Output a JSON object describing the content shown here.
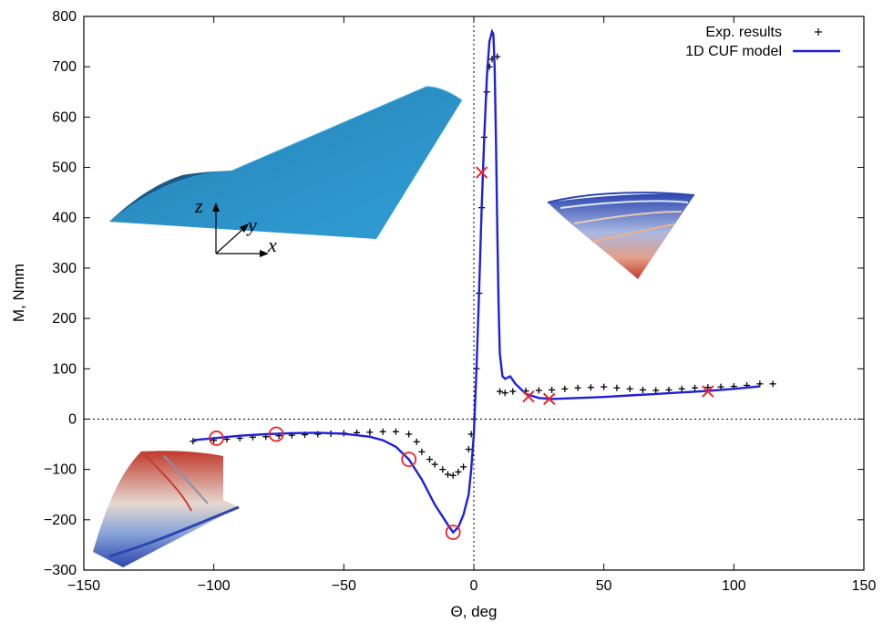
{
  "chart_data": {
    "type": "scatter",
    "title": "",
    "xlabel": "Θ, deg",
    "ylabel": "M, Nmm",
    "xlim": [
      -150,
      150
    ],
    "ylim": [
      -300,
      800
    ],
    "xticks": [
      -150,
      -100,
      -50,
      0,
      50,
      100,
      150
    ],
    "yticks": [
      -300,
      -200,
      -100,
      0,
      100,
      200,
      300,
      400,
      500,
      600,
      700,
      800
    ],
    "grid": false,
    "zero_lines": "dotted at x=0 and y=0",
    "legend_position": "top-right",
    "legend": {
      "exp_label": "Exp. results",
      "model_label": "1D CUF model"
    },
    "colors": {
      "model": "#1f1fdc",
      "experiment": "#000000",
      "markers": "#e8262a"
    },
    "series": [
      {
        "name": "1D CUF model",
        "style": "line",
        "x": [
          -108,
          -100,
          -90,
          -80,
          -70,
          -60,
          -50,
          -40,
          -35,
          -30,
          -25,
          -20,
          -15,
          -10,
          -8,
          -6,
          -4,
          -2,
          -1,
          0,
          1,
          2,
          3,
          4,
          5,
          6,
          7,
          7.5,
          8,
          8.5,
          9,
          9.5,
          10,
          11,
          12,
          14,
          16,
          20,
          25,
          30,
          40,
          50,
          60,
          70,
          80,
          90,
          100,
          110
        ],
        "y": [
          -42,
          -38,
          -33,
          -30,
          -28,
          -27,
          -29,
          -35,
          -42,
          -55,
          -80,
          -120,
          -170,
          -210,
          -225,
          -215,
          -190,
          -150,
          -100,
          -30,
          100,
          250,
          420,
          560,
          680,
          750,
          770,
          765,
          700,
          550,
          380,
          230,
          130,
          85,
          80,
          85,
          70,
          50,
          42,
          40,
          42,
          44,
          47,
          50,
          53,
          56,
          60,
          65
        ]
      },
      {
        "name": "Exp. results",
        "style": "plus",
        "x": [
          -108,
          -100,
          -95,
          -90,
          -85,
          -80,
          -75,
          -70,
          -65,
          -60,
          -55,
          -50,
          -45,
          -40,
          -35,
          -30,
          -25,
          -22,
          -20,
          -17,
          -15,
          -12,
          -10,
          -8,
          -6,
          -4,
          -2,
          -1,
          0,
          1,
          2,
          3,
          4,
          5,
          6,
          7,
          8,
          9,
          10,
          12,
          15,
          20,
          25,
          30,
          35,
          40,
          45,
          50,
          55,
          60,
          65,
          70,
          75,
          80,
          85,
          90,
          95,
          100,
          105,
          110,
          115
        ],
        "y": [
          -44,
          -42,
          -40,
          -38,
          -36,
          -35,
          -33,
          -32,
          -31,
          -30,
          -29,
          -28,
          -27,
          -26,
          -25,
          -25,
          -30,
          -45,
          -65,
          -80,
          -90,
          -100,
          -110,
          -112,
          -105,
          -95,
          -60,
          -30,
          0,
          100,
          250,
          420,
          560,
          650,
          700,
          715,
          720,
          720,
          55,
          52,
          55,
          56,
          57,
          58,
          60,
          62,
          63,
          64,
          62,
          60,
          58,
          57,
          58,
          60,
          62,
          63,
          64,
          65,
          67,
          70,
          70
        ]
      },
      {
        "name": "markers-circle",
        "style": "circle",
        "x": [
          -99,
          -76,
          -25,
          -8
        ],
        "y": [
          -38,
          -30,
          -80,
          -225
        ]
      },
      {
        "name": "markers-cross",
        "style": "cross",
        "x": [
          3,
          21,
          29,
          90
        ],
        "y": [
          490,
          45,
          40,
          55
        ]
      }
    ],
    "inset_axes": {
      "z": "z",
      "y": "y",
      "x": "x"
    }
  }
}
